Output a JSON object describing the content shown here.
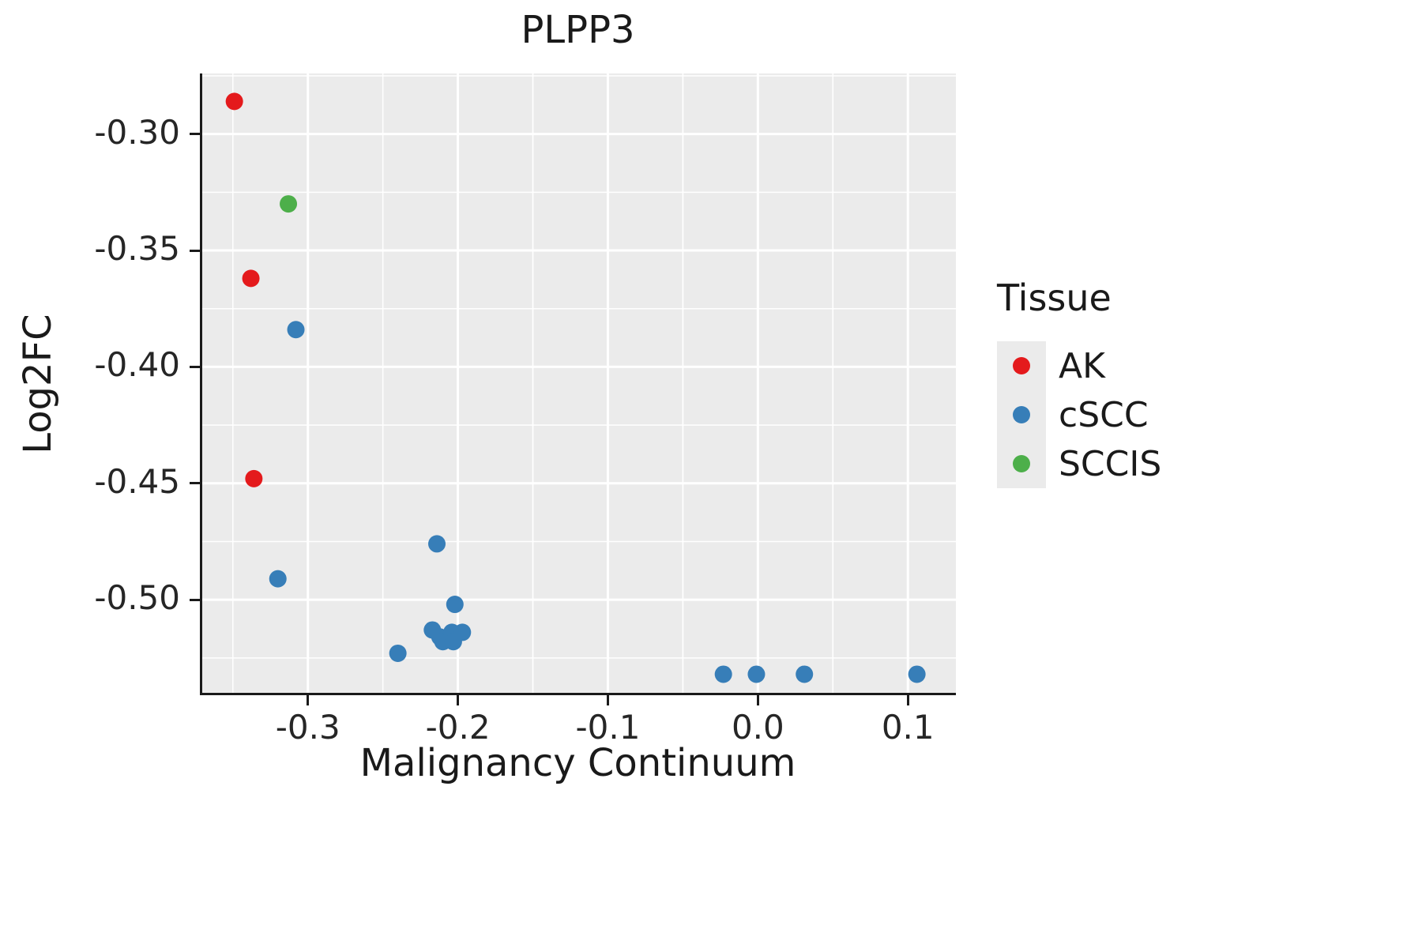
{
  "chart_data": {
    "type": "scatter",
    "title": "PLPP3",
    "xlabel": "Malignancy Continuum",
    "ylabel": "Log2FC",
    "legend_title": "Tissue",
    "xlim": [
      -0.372,
      0.132
    ],
    "ylim": [
      -0.541,
      -0.274
    ],
    "x_ticks": [
      -0.3,
      -0.2,
      -0.1,
      0.0,
      0.1
    ],
    "x_tick_labels": [
      "-0.3",
      "-0.2",
      "-0.1",
      "0.0",
      "0.1"
    ],
    "y_ticks": [
      -0.3,
      -0.35,
      -0.4,
      -0.45,
      -0.5
    ],
    "y_tick_labels": [
      "-0.30",
      "-0.35",
      "-0.40",
      "-0.45",
      "-0.50"
    ],
    "grid": true,
    "panel_background": "#EBEBEB",
    "grid_color": "#FFFFFF",
    "axis_color": "#1a1a1a",
    "legend_position": "right",
    "series": [
      {
        "name": "AK",
        "color": "#E41A1C",
        "points": [
          [
            -0.349,
            -0.286
          ],
          [
            -0.338,
            -0.362
          ],
          [
            -0.336,
            -0.448
          ]
        ]
      },
      {
        "name": "cSCC",
        "color": "#377EB8",
        "points": [
          [
            -0.308,
            -0.384
          ],
          [
            -0.32,
            -0.491
          ],
          [
            -0.24,
            -0.523
          ],
          [
            -0.214,
            -0.476
          ],
          [
            -0.202,
            -0.502
          ],
          [
            -0.217,
            -0.513
          ],
          [
            -0.212,
            -0.516
          ],
          [
            -0.21,
            -0.518
          ],
          [
            -0.204,
            -0.514
          ],
          [
            -0.203,
            -0.518
          ],
          [
            -0.197,
            -0.514
          ],
          [
            -0.023,
            -0.532
          ],
          [
            -0.001,
            -0.532
          ],
          [
            0.031,
            -0.532
          ],
          [
            0.106,
            -0.532
          ]
        ]
      },
      {
        "name": "SCCIS",
        "color": "#4DAF4A",
        "points": [
          [
            -0.313,
            -0.33
          ]
        ]
      }
    ]
  },
  "legend": {
    "title": "Tissue",
    "items": [
      {
        "label": "AK",
        "color": "#E41A1C"
      },
      {
        "label": "cSCC",
        "color": "#377EB8"
      },
      {
        "label": "SCCIS",
        "color": "#4DAF4A"
      }
    ]
  }
}
